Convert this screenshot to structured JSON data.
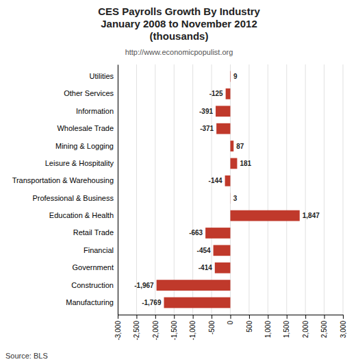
{
  "chart_data": {
    "type": "bar",
    "orientation": "horizontal",
    "title": "CES Payrolls Growth By Industry\nJanuary 2008 to November 2012\n(thousands)",
    "subtitle": "http://www.economicpopulist.org",
    "annotations": [
      "Source: BLS"
    ],
    "categories": [
      "Manufacturing",
      "Construction",
      "Government",
      "Financial",
      "Retail Trade",
      "Education & Health",
      "Professional & Business",
      "Transportation & Warehousing",
      "Leisure & Hospitality",
      "Mining & Logging",
      "Wholesale Trade",
      "Information",
      "Other Services",
      "Utilities"
    ],
    "values": [
      -1769,
      -1967,
      -414,
      -454,
      -663,
      1847,
      3,
      -144,
      181,
      87,
      -371,
      -391,
      -125,
      9
    ],
    "value_labels": [
      "-1,769",
      "-1,967",
      "-414",
      "-454",
      "-663",
      "1,847",
      "3",
      "-144",
      "181",
      "87",
      "-371",
      "-391",
      "-125",
      "9"
    ],
    "data_labels": true,
    "color": "#c0392b",
    "xlim": [
      -3000,
      3000
    ],
    "xticks": [
      {
        "value": -3000,
        "label": "-3,000"
      },
      {
        "value": -2500,
        "label": "-2,500"
      },
      {
        "value": -2000,
        "label": "-2,000"
      },
      {
        "value": -1500,
        "label": "-1,500"
      },
      {
        "value": -1000,
        "label": "-1,000"
      },
      -500,
      0,
      500,
      {
        "value": 1000,
        "label": "1,000"
      },
      {
        "value": 1500,
        "label": "1,500"
      },
      {
        "value": 2000,
        "label": "2,000"
      },
      {
        "value": 2500,
        "label": "2,500"
      },
      {
        "value": 3000,
        "label": "3,000"
      }
    ],
    "grid": true
  }
}
